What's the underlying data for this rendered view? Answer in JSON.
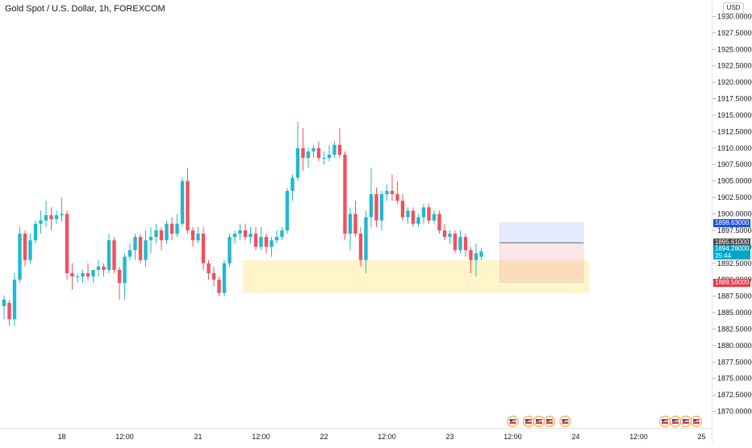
{
  "header": {
    "symbol_title": "Gold Spot / U.S. Dollar, 1h, FOREXCOM"
  },
  "price_axis": {
    "currency": "USD",
    "tag_top_label": "1898.63000",
    "tag_mid_label": "1895.61000",
    "tag_current_label": "1894.28000",
    "tag_current_countdown": "35:44",
    "tag_bottom_label": "1889.58000"
  },
  "colors": {
    "up": "#26a69a",
    "down": "#ef5350",
    "candle_up": "#22b8cf",
    "candle_down": "#f0515e",
    "zone_yellow": "#fff3c4",
    "target_blue": "#dfe8fb",
    "entry_red": "#fbe3e3",
    "stop_orange": "#fbd9b9",
    "tag_blue": "#1e53e5",
    "tag_dark": "#4a4a4a",
    "tag_teal": "#00a6c8",
    "tag_red": "#f23645",
    "event_icon": "flag-icon"
  },
  "chart_data": {
    "type": "candlestick",
    "title": "Gold Spot / U.S. Dollar, 1h, FOREXCOM",
    "ylim": [
      1867.5,
      1932.5
    ],
    "y_ticks": [
      "1870.00000",
      "1872.50000",
      "1875.00000",
      "1877.50000",
      "1880.00000",
      "1882.50000",
      "1885.00000",
      "1887.50000",
      "1890.00000",
      "1892.50000",
      "1895.00000",
      "1897.50000",
      "1900.00000",
      "1902.50000",
      "1905.00000",
      "1907.50000",
      "1910.00000",
      "1912.50000",
      "1915.00000",
      "1917.50000",
      "1920.00000",
      "1922.50000",
      "1925.00000",
      "1927.50000",
      "1930.00000"
    ],
    "x_ticks": [
      {
        "label": "18",
        "bar": 11
      },
      {
        "label": "12:00",
        "bar": 23
      },
      {
        "label": "21",
        "bar": 37
      },
      {
        "label": "12:00",
        "bar": 49
      },
      {
        "label": "22",
        "bar": 61
      },
      {
        "label": "12:00",
        "bar": 73
      },
      {
        "label": "23",
        "bar": 85
      },
      {
        "label": "12:00",
        "bar": 97
      },
      {
        "label": "24",
        "bar": 109
      },
      {
        "label": "12:00",
        "bar": 121
      },
      {
        "label": "25",
        "bar": 133
      }
    ],
    "candles": [
      [
        1886.0,
        1887.6,
        1884.0,
        1887.0
      ],
      [
        1886.5,
        1886.9,
        1883.0,
        1884.0
      ],
      [
        1884.0,
        1891.0,
        1883.0,
        1890.0
      ],
      [
        1890.0,
        1898.0,
        1889.5,
        1897.0
      ],
      [
        1897.0,
        1897.5,
        1892.0,
        1893.0
      ],
      [
        1893.0,
        1897.0,
        1892.5,
        1896.0
      ],
      [
        1896.0,
        1899.0,
        1895.5,
        1898.5
      ],
      [
        1898.5,
        1900.5,
        1897.0,
        1899.0
      ],
      [
        1899.0,
        1902.0,
        1898.0,
        1899.8
      ],
      [
        1899.8,
        1901.0,
        1897.5,
        1899.2
      ],
      [
        1899.2,
        1900.5,
        1898.5,
        1899.8
      ],
      [
        1899.8,
        1902.5,
        1898.8,
        1900.0
      ],
      [
        1900.0,
        1900.5,
        1890.0,
        1891.0
      ],
      [
        1891.0,
        1892.5,
        1888.5,
        1890.5
      ],
      [
        1890.5,
        1891.0,
        1889.5,
        1890.5
      ],
      [
        1890.5,
        1891.5,
        1889.5,
        1891.0
      ],
      [
        1891.0,
        1892.5,
        1890.0,
        1890.5
      ],
      [
        1890.5,
        1891.5,
        1889.5,
        1891.5
      ],
      [
        1891.5,
        1893.0,
        1890.5,
        1892.0
      ],
      [
        1892.0,
        1892.5,
        1890.5,
        1891.5
      ],
      [
        1891.5,
        1897.0,
        1891.0,
        1896.0
      ],
      [
        1896.0,
        1896.5,
        1891.0,
        1891.5
      ],
      [
        1891.5,
        1892.0,
        1887.0,
        1889.5
      ],
      [
        1889.5,
        1894.0,
        1887.0,
        1893.5
      ],
      [
        1893.5,
        1895.5,
        1893.0,
        1894.5
      ],
      [
        1894.5,
        1897.0,
        1893.0,
        1896.5
      ],
      [
        1896.5,
        1897.0,
        1892.5,
        1893.0
      ],
      [
        1893.0,
        1897.5,
        1892.0,
        1896.0
      ],
      [
        1896.0,
        1898.0,
        1894.0,
        1896.5
      ],
      [
        1896.5,
        1898.5,
        1895.5,
        1897.5
      ],
      [
        1897.5,
        1898.0,
        1894.5,
        1896.0
      ],
      [
        1896.0,
        1899.0,
        1895.5,
        1898.5
      ],
      [
        1898.5,
        1899.5,
        1896.0,
        1897.0
      ],
      [
        1897.0,
        1900.0,
        1896.5,
        1898.5
      ],
      [
        1898.5,
        1905.5,
        1898.0,
        1905.0
      ],
      [
        1905.0,
        1907.0,
        1897.0,
        1897.5
      ],
      [
        1897.5,
        1898.0,
        1895.0,
        1896.0
      ],
      [
        1896.0,
        1898.0,
        1895.5,
        1897.0
      ],
      [
        1897.0,
        1898.0,
        1891.5,
        1892.5
      ],
      [
        1892.5,
        1893.0,
        1890.0,
        1891.0
      ],
      [
        1891.0,
        1892.0,
        1889.0,
        1890.0
      ],
      [
        1890.0,
        1890.5,
        1887.5,
        1888.0
      ],
      [
        1888.0,
        1893.0,
        1887.5,
        1892.5
      ],
      [
        1892.5,
        1897.0,
        1892.0,
        1896.5
      ],
      [
        1896.5,
        1897.5,
        1895.5,
        1897.0
      ],
      [
        1897.0,
        1898.5,
        1896.0,
        1897.5
      ],
      [
        1897.5,
        1898.5,
        1896.0,
        1896.5
      ],
      [
        1896.5,
        1898.0,
        1895.5,
        1897.0
      ],
      [
        1897.0,
        1898.0,
        1894.5,
        1895.0
      ],
      [
        1895.0,
        1898.0,
        1894.5,
        1896.5
      ],
      [
        1896.5,
        1897.0,
        1894.0,
        1895.0
      ],
      [
        1895.0,
        1896.5,
        1893.5,
        1896.0
      ],
      [
        1896.0,
        1897.5,
        1895.5,
        1896.5
      ],
      [
        1896.5,
        1898.0,
        1896.0,
        1897.5
      ],
      [
        1897.5,
        1904.0,
        1897.0,
        1903.5
      ],
      [
        1903.5,
        1906.0,
        1902.0,
        1905.5
      ],
      [
        1905.5,
        1914.0,
        1905.0,
        1910.0
      ],
      [
        1910.0,
        1913.0,
        1906.5,
        1908.5
      ],
      [
        1908.5,
        1910.0,
        1907.0,
        1909.5
      ],
      [
        1909.5,
        1910.5,
        1908.5,
        1910.0
      ],
      [
        1910.0,
        1911.0,
        1908.0,
        1908.5
      ],
      [
        1908.5,
        1909.5,
        1907.5,
        1908.5
      ],
      [
        1908.5,
        1910.5,
        1908.0,
        1909.0
      ],
      [
        1909.0,
        1911.0,
        1908.5,
        1910.5
      ],
      [
        1910.5,
        1913.0,
        1908.5,
        1909.0
      ],
      [
        1909.0,
        1909.5,
        1896.0,
        1897.0
      ],
      [
        1897.0,
        1901.0,
        1894.5,
        1900.0
      ],
      [
        1900.0,
        1902.0,
        1896.5,
        1897.0
      ],
      [
        1897.0,
        1898.0,
        1892.0,
        1893.0
      ],
      [
        1893.0,
        1900.5,
        1891.0,
        1899.5
      ],
      [
        1899.5,
        1907.0,
        1898.0,
        1903.0
      ],
      [
        1903.0,
        1904.0,
        1898.0,
        1899.0
      ],
      [
        1899.0,
        1903.5,
        1897.5,
        1903.0
      ],
      [
        1903.0,
        1904.5,
        1902.0,
        1903.5
      ],
      [
        1903.5,
        1906.0,
        1902.0,
        1903.0
      ],
      [
        1903.0,
        1905.0,
        1901.5,
        1902.0
      ],
      [
        1902.0,
        1903.0,
        1899.0,
        1899.5
      ],
      [
        1899.5,
        1901.0,
        1898.5,
        1900.5
      ],
      [
        1900.5,
        1901.0,
        1898.0,
        1898.5
      ],
      [
        1898.5,
        1900.0,
        1898.0,
        1899.5
      ],
      [
        1899.5,
        1901.5,
        1898.5,
        1901.0
      ],
      [
        1901.0,
        1901.5,
        1898.5,
        1899.0
      ],
      [
        1899.0,
        1900.5,
        1898.5,
        1900.0
      ],
      [
        1900.0,
        1900.5,
        1897.0,
        1897.5
      ],
      [
        1897.5,
        1898.5,
        1896.0,
        1896.5
      ],
      [
        1896.5,
        1897.5,
        1895.5,
        1897.0
      ],
      [
        1897.0,
        1897.5,
        1894.0,
        1894.5
      ],
      [
        1894.5,
        1897.5,
        1894.0,
        1896.5
      ],
      [
        1896.5,
        1897.0,
        1893.5,
        1894.5
      ],
      [
        1894.5,
        1895.0,
        1891.0,
        1893.0
      ],
      [
        1893.0,
        1895.5,
        1890.5,
        1894.0
      ],
      [
        1893.5,
        1894.8,
        1893.0,
        1894.28
      ]
    ],
    "zones": [
      {
        "name": "demand-zone",
        "from_bar": 45.5,
        "to_bar": 111.5,
        "top": 1893.0,
        "bottom": 1888.0
      },
      {
        "name": "target-zone",
        "from_bar": 94.5,
        "to_bar": 110.5,
        "top": 1898.63,
        "bottom": 1895.61
      },
      {
        "name": "entry-zone",
        "from_bar": 94.5,
        "to_bar": 110.5,
        "top": 1895.61,
        "bottom": 1892.9
      },
      {
        "name": "stop-zone",
        "from_bar": 94.5,
        "to_bar": 110.5,
        "top": 1892.9,
        "bottom": 1889.58
      }
    ],
    "position_line": 1895.61,
    "event_bars": [
      97,
      100,
      102,
      104,
      107,
      126,
      128,
      130,
      132
    ]
  }
}
